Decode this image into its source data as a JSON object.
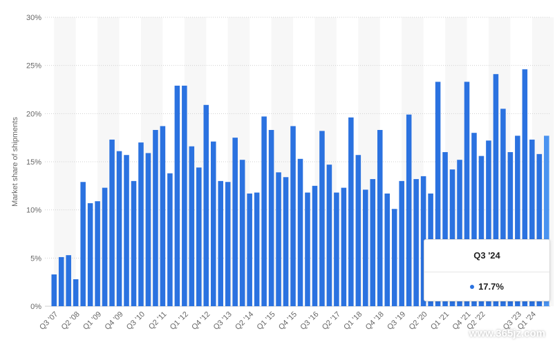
{
  "colors": {
    "bar": "#2b72e0",
    "bar_highlight": "#4a93f0",
    "band": "#f7f7f7",
    "grid": "#cfcfcf",
    "axis_text": "#666666"
  },
  "chart_data": {
    "type": "bar",
    "ylabel": "Market share of shipments",
    "ylim": [
      0,
      30
    ],
    "yticks": [
      "0%",
      "5%",
      "10%",
      "15%",
      "20%",
      "25%",
      "30%"
    ],
    "categories": [
      "Q3 '07",
      "Q4 '07",
      "Q1 '08",
      "Q2 '08",
      "Q3 '08",
      "Q4 '08",
      "Q1 '09",
      "Q2 '09",
      "Q3 '09",
      "Q4 '09",
      "Q1 '10",
      "Q2 '10",
      "Q3 '10",
      "Q4 '10",
      "Q1 '11",
      "Q2 '11",
      "Q3 '11",
      "Q4 '11",
      "Q1 '12",
      "Q2 '12",
      "Q3 '12",
      "Q4 '12",
      "Q1 '13",
      "Q2 '13",
      "Q3 '13",
      "Q4 '13",
      "Q1 '14",
      "Q2 '14",
      "Q3 '14",
      "Q4 '14",
      "Q1 '15",
      "Q2 '15",
      "Q3 '15",
      "Q4 '15",
      "Q1 '16",
      "Q2 '16",
      "Q3 '16",
      "Q4 '16",
      "Q1 '17",
      "Q2 '17",
      "Q3 '17",
      "Q4 '17",
      "Q1 '18",
      "Q2 '18",
      "Q3 '18",
      "Q4 '18",
      "Q1 '19",
      "Q2 '19",
      "Q3 '19",
      "Q4 '19",
      "Q1 '20",
      "Q2 '20",
      "Q3 '20",
      "Q4 '20",
      "Q1 '21",
      "Q2 '21",
      "Q3 '21",
      "Q4 '21",
      "Q1 '22",
      "Q2 '22",
      "Q3 '22",
      "Q4 '22",
      "Q1 '23",
      "Q2 '23",
      "Q3 '23",
      "Q4 '23",
      "Q1 '24",
      "Q2 '24",
      "Q3 '24"
    ],
    "xtick_labels": [
      "Q3 '07",
      "Q2 '08",
      "Q1 '09",
      "Q4 '09",
      "Q3 '10",
      "Q2 '11",
      "Q1 '12",
      "Q4 '12",
      "Q3 '13",
      "Q2 '14",
      "Q1 '15",
      "Q4 '15",
      "Q3 '16",
      "Q2 '17",
      "Q1 '18",
      "Q4 '18",
      "Q3 '19",
      "Q2 '20",
      "Q1 '21",
      "Q4 '21",
      "Q2 '22",
      "Q3 '23",
      "Q1 '24"
    ],
    "values": [
      3.3,
      5.1,
      5.3,
      2.8,
      12.9,
      10.7,
      10.9,
      12.3,
      17.3,
      16.1,
      15.7,
      13.0,
      17.0,
      15.9,
      18.3,
      18.7,
      13.8,
      22.9,
      22.9,
      16.6,
      14.4,
      20.9,
      17.1,
      13.0,
      12.9,
      17.5,
      15.2,
      11.7,
      11.8,
      19.7,
      18.3,
      13.9,
      13.4,
      18.7,
      15.3,
      11.8,
      12.5,
      18.2,
      14.7,
      11.8,
      12.3,
      19.6,
      15.7,
      12.1,
      13.2,
      18.3,
      11.7,
      10.1,
      13.0,
      19.9,
      13.2,
      13.5,
      11.7,
      23.3,
      16.0,
      14.2,
      15.2,
      23.3,
      18.0,
      15.6,
      17.2,
      24.1,
      20.5,
      16.0,
      17.7,
      24.6,
      17.3,
      15.8,
      17.7
    ],
    "highlight_index": 68,
    "grid": true
  },
  "tooltip": {
    "title": "Q3 '24",
    "value": "17.7%"
  },
  "watermark": "www.365jz.com"
}
